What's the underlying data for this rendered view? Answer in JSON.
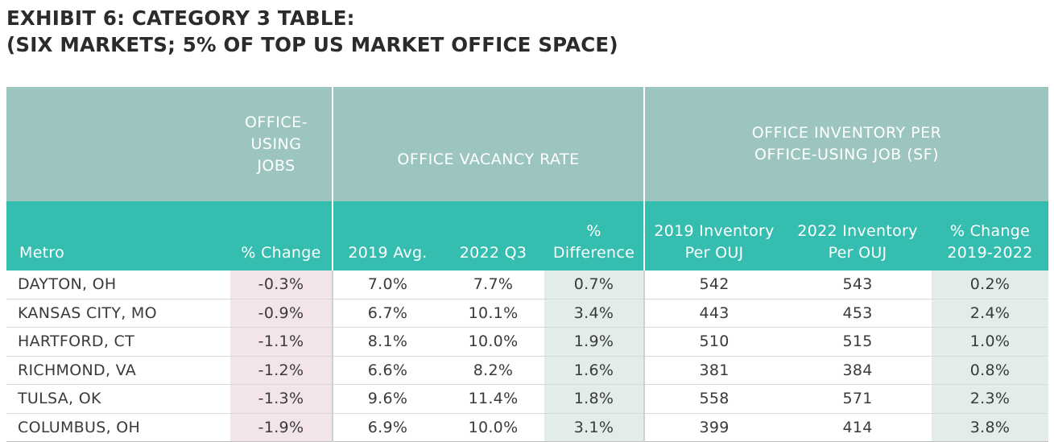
{
  "title": {
    "line1": "EXHIBIT 6: CATEGORY 3 TABLE:",
    "line2": "(SIX MARKETS; 5% OF TOP US MARKET OFFICE SPACE)"
  },
  "chart_data": {
    "type": "table",
    "title": "EXHIBIT 6: CATEGORY 3 TABLE: (SIX MARKETS; 5% OF TOP US MARKET OFFICE SPACE)",
    "group_headers": {
      "jobs": "OFFICE-USING JOBS",
      "vacancy": "OFFICE VACANCY RATE",
      "inventory": "OFFICE INVENTORY PER OFFICE-USING JOB (SF)"
    },
    "columns": [
      "Metro",
      "% Change",
      "2019 Avg.",
      "2022 Q3",
      "% Difference",
      "2019 Inventory Per OUJ",
      "2022 Inventory Per OUJ",
      "% Change 2019-2022"
    ],
    "rows": [
      [
        "DAYTON, OH",
        "-0.3%",
        "7.0%",
        "7.7%",
        "0.7%",
        "542",
        "543",
        "0.2%"
      ],
      [
        "KANSAS CITY, MO",
        "-0.9%",
        "6.7%",
        "10.1%",
        "3.4%",
        "443",
        "453",
        "2.4%"
      ],
      [
        "HARTFORD, CT",
        "-1.1%",
        "8.1%",
        "10.0%",
        "1.9%",
        "510",
        "515",
        "1.0%"
      ],
      [
        "RICHMOND, VA",
        "-1.2%",
        "6.6%",
        "8.2%",
        "1.6%",
        "381",
        "384",
        "0.8%"
      ],
      [
        "TULSA, OK",
        "-1.3%",
        "9.6%",
        "11.4%",
        "1.8%",
        "558",
        "571",
        "2.3%"
      ],
      [
        "COLUMBUS, OH",
        "-1.9%",
        "6.9%",
        "10.0%",
        "3.1%",
        "399",
        "414",
        "3.8%"
      ]
    ]
  },
  "header_lines": {
    "jobs": [
      "OFFICE-",
      "USING",
      "JOBS"
    ],
    "inventory": [
      "OFFICE INVENTORY PER",
      "OFFICE-USING JOB (SF)"
    ],
    "pct_diff": [
      "%",
      "Difference"
    ],
    "inv2019": [
      "2019 Inventory",
      "Per OUJ"
    ],
    "inv2022": [
      "2022 Inventory",
      "Per OUJ"
    ],
    "chg": [
      "% Change",
      "2019-2022"
    ]
  },
  "colors": {
    "group_header_bg": "#9cc5c0",
    "column_header_bg": "#35bdb0",
    "jobs_column_shade": "#f3e4ec",
    "difference_column_shade": "#e2ecea"
  }
}
